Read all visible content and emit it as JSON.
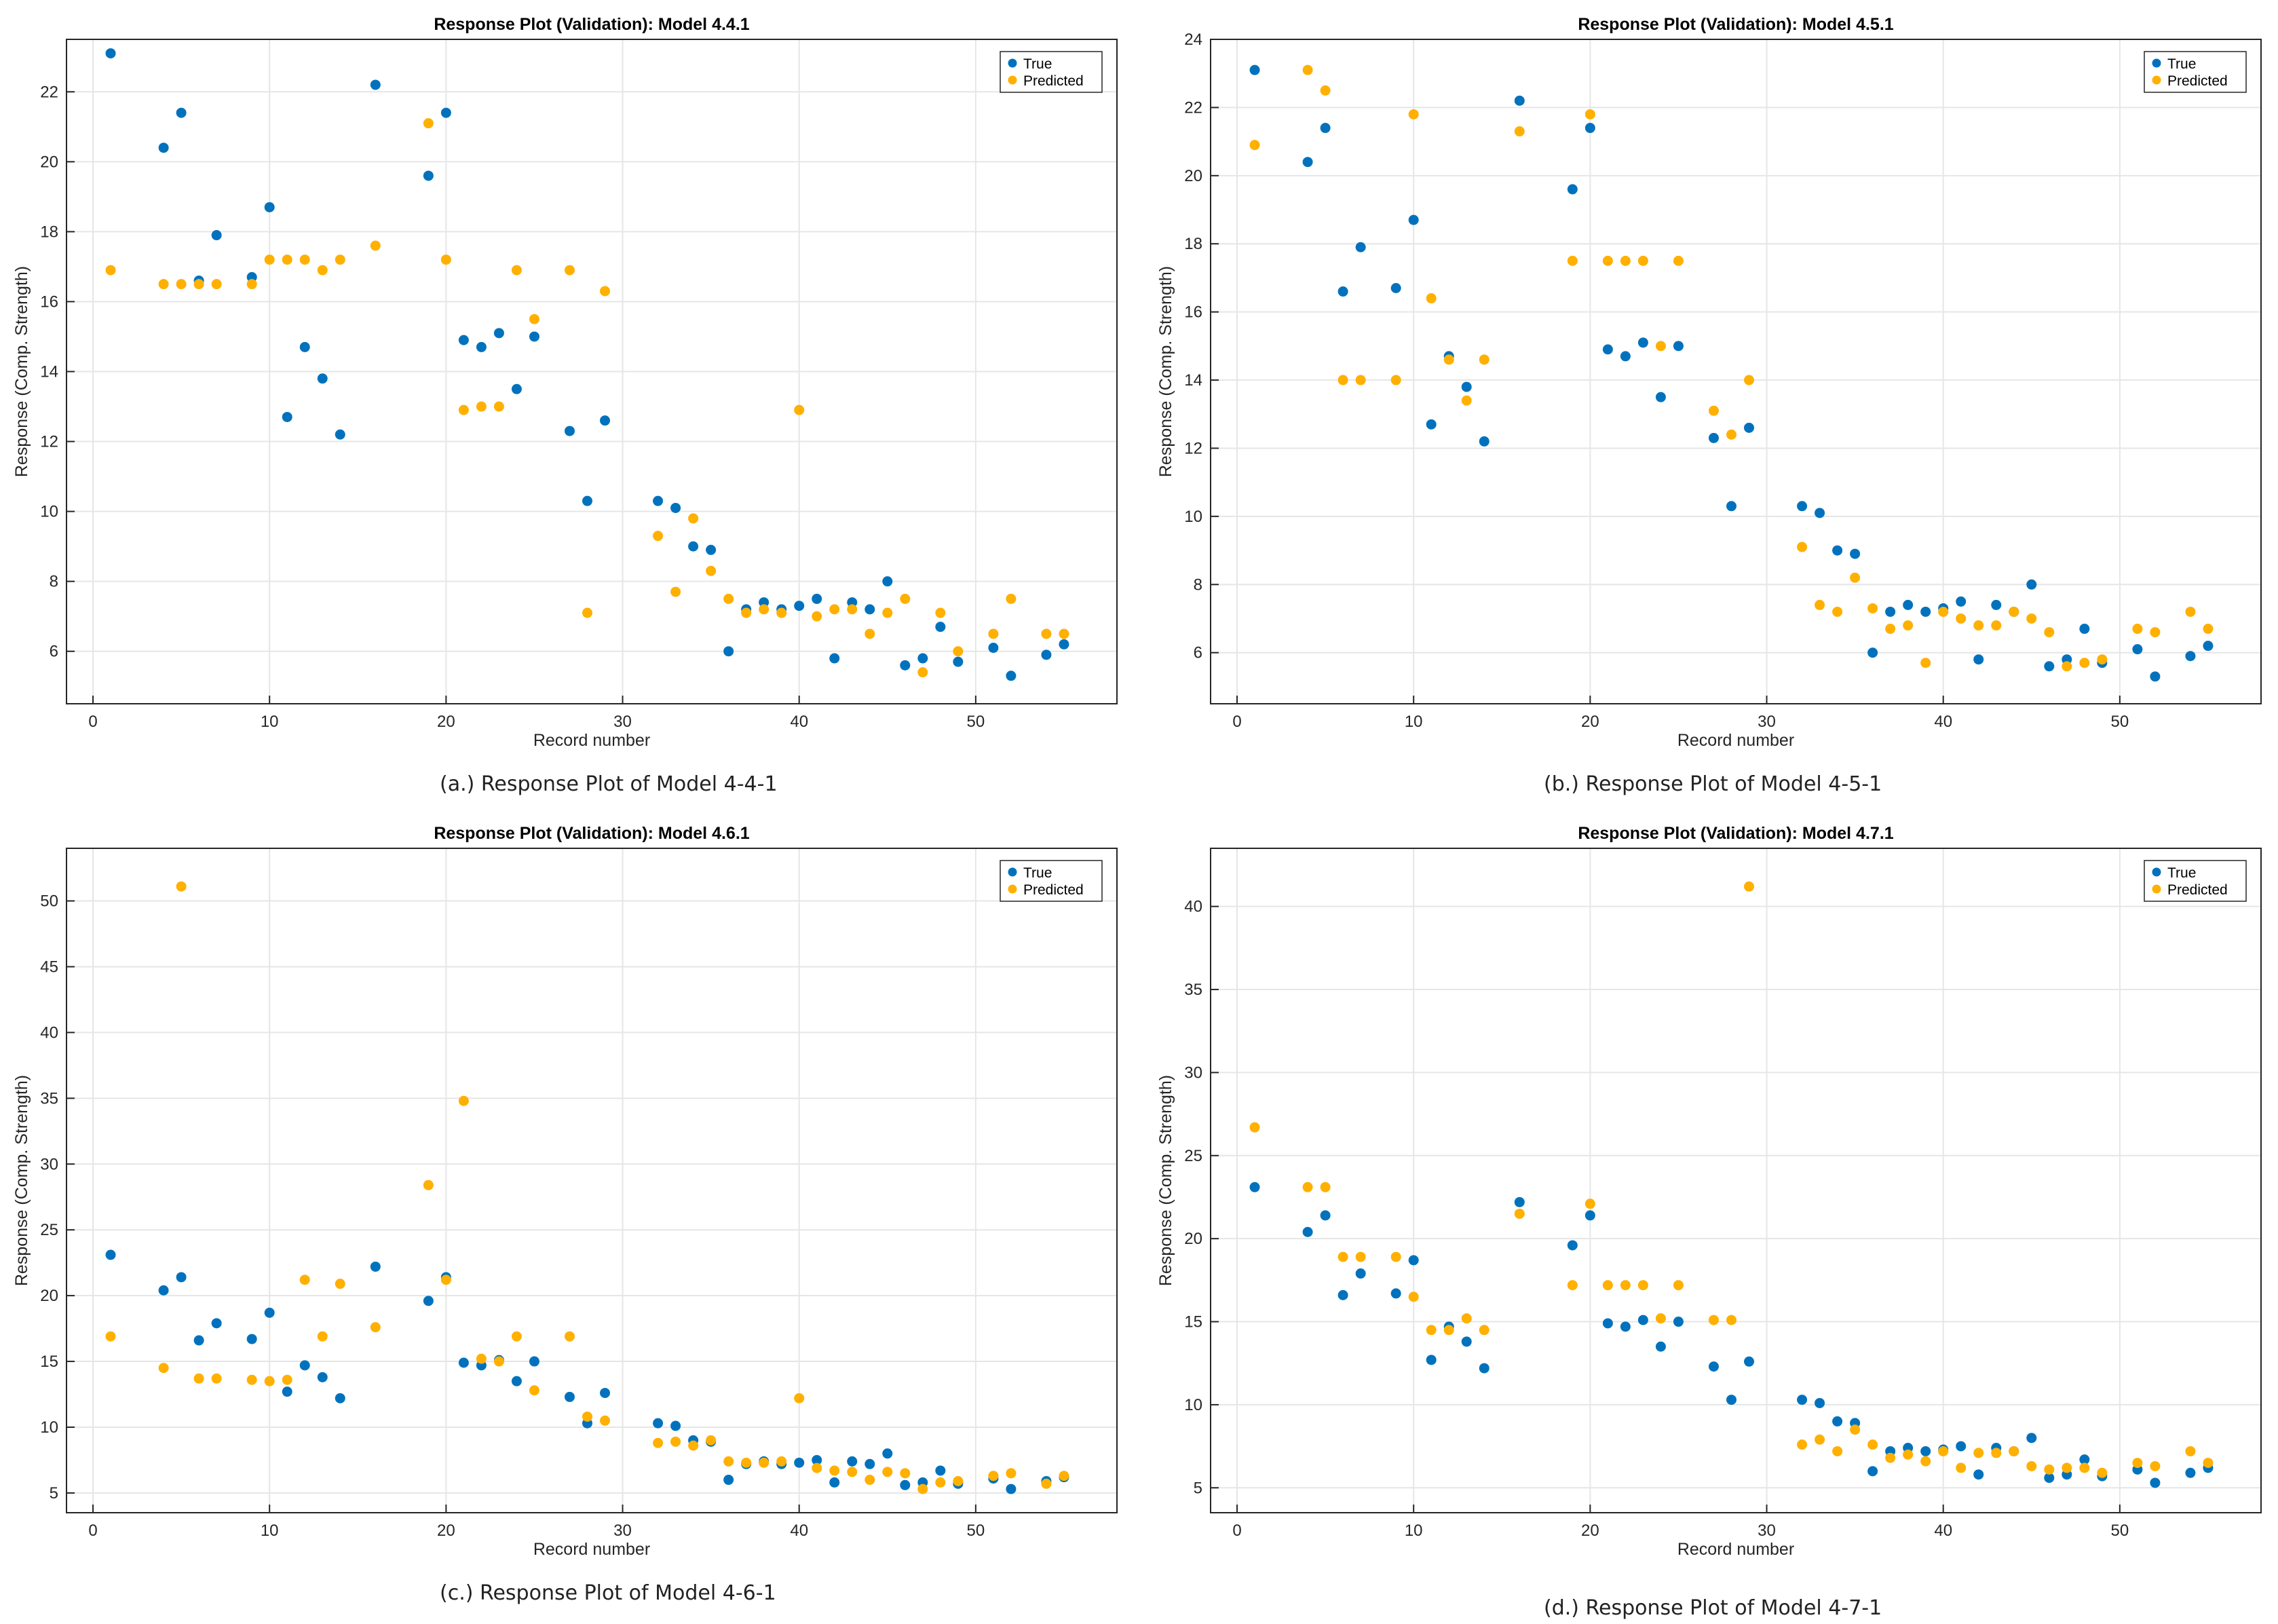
{
  "colors": {
    "true": "#0072BD",
    "predicted": "#FFB000",
    "grid": "#e6e6e6",
    "axis": "#262626"
  },
  "captions": {
    "a": "(a.) Response Plot of Model 4-4-1",
    "b": "(b.) Response Plot of Model 4-5-1",
    "c": "(c.) Response Plot of Model 4-6-1",
    "d": "(d.) Response Plot of Model 4-7-1"
  },
  "chart_data": [
    {
      "type": "scatter",
      "title": "Response Plot (Validation): Model 4.4.1",
      "xlabel": "Record number",
      "ylabel": "Response (Comp. Strength)",
      "xlim": [
        -1.5,
        58
      ],
      "ylim": [
        4.5,
        23.5
      ],
      "xticks": [
        0,
        10,
        20,
        30,
        40,
        50
      ],
      "yticks": [
        6,
        8,
        10,
        12,
        14,
        16,
        18,
        20,
        22
      ],
      "grid": true,
      "legend": {
        "position": "top-right",
        "entries": [
          "True",
          "Predicted"
        ]
      },
      "x": [
        1,
        4,
        5,
        6,
        7,
        9,
        10,
        11,
        12,
        13,
        14,
        16,
        19,
        20,
        21,
        22,
        23,
        24,
        25,
        27,
        28,
        29,
        32,
        33,
        34,
        35,
        36,
        37,
        38,
        39,
        40,
        41,
        42,
        43,
        44,
        45,
        46,
        47,
        48,
        49,
        51,
        52,
        54,
        55
      ],
      "series": [
        {
          "name": "True",
          "values": [
            23.1,
            20.4,
            21.4,
            16.6,
            17.9,
            16.7,
            18.7,
            12.7,
            14.7,
            13.8,
            12.2,
            22.2,
            19.6,
            21.4,
            14.9,
            14.7,
            15.1,
            13.5,
            15.0,
            12.3,
            10.3,
            12.6,
            10.3,
            10.1,
            9.0,
            8.9,
            6.0,
            7.2,
            7.4,
            7.2,
            7.3,
            7.5,
            5.8,
            7.4,
            7.2,
            8.0,
            5.6,
            5.8,
            6.7,
            5.7,
            6.1,
            5.3,
            5.9,
            6.2
          ]
        },
        {
          "name": "Predicted",
          "values": [
            16.9,
            16.5,
            16.5,
            16.5,
            16.5,
            16.5,
            17.2,
            17.2,
            17.2,
            16.9,
            17.2,
            17.6,
            21.1,
            17.2,
            12.9,
            13.0,
            13.0,
            16.9,
            15.5,
            16.9,
            7.1,
            16.3,
            9.3,
            7.7,
            9.8,
            8.3,
            7.5,
            7.1,
            7.2,
            7.1,
            12.9,
            7.0,
            7.2,
            7.2,
            6.5,
            7.1,
            7.5,
            5.4,
            7.1,
            6.0,
            6.5,
            7.5,
            6.5,
            6.5
          ]
        }
      ]
    },
    {
      "type": "scatter",
      "title": "Response Plot (Validation): Model 4.5.1",
      "xlabel": "Record number",
      "ylabel": "Response (Comp. Strength)",
      "xlim": [
        -1.5,
        58
      ],
      "ylim": [
        4.5,
        24
      ],
      "xticks": [
        0,
        10,
        20,
        30,
        40,
        50
      ],
      "yticks": [
        6,
        8,
        10,
        12,
        14,
        16,
        18,
        20,
        22,
        24
      ],
      "grid": true,
      "legend": {
        "position": "top-right",
        "entries": [
          "True",
          "Predicted"
        ]
      },
      "x": [
        1,
        4,
        5,
        6,
        7,
        9,
        10,
        11,
        12,
        13,
        14,
        16,
        19,
        20,
        21,
        22,
        23,
        24,
        25,
        27,
        28,
        29,
        32,
        33,
        34,
        35,
        36,
        37,
        38,
        39,
        40,
        41,
        42,
        43,
        44,
        45,
        46,
        47,
        48,
        49,
        51,
        52,
        54,
        55
      ],
      "series": [
        {
          "name": "True",
          "values": [
            23.1,
            20.4,
            21.4,
            16.6,
            17.9,
            16.7,
            18.7,
            12.7,
            14.7,
            13.8,
            12.2,
            22.2,
            19.6,
            21.4,
            14.9,
            14.7,
            15.1,
            13.5,
            15.0,
            12.3,
            10.3,
            12.6,
            10.3,
            10.1,
            9.0,
            8.9,
            6.0,
            7.2,
            7.4,
            7.2,
            7.3,
            7.5,
            5.8,
            7.4,
            7.2,
            8.0,
            5.6,
            5.8,
            6.7,
            5.7,
            6.1,
            5.3,
            5.9,
            6.2
          ]
        },
        {
          "name": "Predicted",
          "values": [
            20.9,
            23.1,
            22.5,
            14.0,
            14.0,
            14.0,
            21.8,
            16.4,
            14.6,
            13.4,
            14.6,
            21.3,
            17.5,
            21.8,
            17.5,
            17.5,
            17.5,
            15.0,
            17.5,
            13.1,
            12.4,
            14.0,
            9.1,
            7.4,
            7.2,
            8.2,
            7.3,
            6.7,
            6.8,
            5.7,
            7.2,
            7.0,
            6.8,
            6.8,
            7.2,
            7.0,
            6.6,
            5.6,
            5.7,
            5.8,
            6.7,
            6.6,
            7.2,
            6.7
          ]
        }
      ]
    },
    {
      "type": "scatter",
      "title": "Response Plot (Validation): Model 4.6.1",
      "xlabel": "Record number",
      "ylabel": "Response (Comp. Strength)",
      "xlim": [
        -1.5,
        58
      ],
      "ylim": [
        3.5,
        54
      ],
      "xticks": [
        0,
        10,
        20,
        30,
        40,
        50
      ],
      "yticks": [
        5,
        10,
        15,
        20,
        25,
        30,
        35,
        40,
        45,
        50
      ],
      "grid": true,
      "legend": {
        "position": "top-right",
        "entries": [
          "True",
          "Predicted"
        ]
      },
      "x": [
        1,
        4,
        5,
        6,
        7,
        9,
        10,
        11,
        12,
        13,
        14,
        16,
        19,
        20,
        21,
        22,
        23,
        24,
        25,
        27,
        28,
        29,
        32,
        33,
        34,
        35,
        36,
        37,
        38,
        39,
        40,
        41,
        42,
        43,
        44,
        45,
        46,
        47,
        48,
        49,
        51,
        52,
        54,
        55
      ],
      "series": [
        {
          "name": "True",
          "values": [
            23.1,
            20.4,
            21.4,
            16.6,
            17.9,
            16.7,
            18.7,
            12.7,
            14.7,
            13.8,
            12.2,
            22.2,
            19.6,
            21.4,
            14.9,
            14.7,
            15.1,
            13.5,
            15.0,
            12.3,
            10.3,
            12.6,
            10.3,
            10.1,
            9.0,
            8.9,
            6.0,
            7.2,
            7.4,
            7.2,
            7.3,
            7.5,
            5.8,
            7.4,
            7.2,
            8.0,
            5.6,
            5.8,
            6.7,
            5.7,
            6.1,
            5.3,
            5.9,
            6.2
          ]
        },
        {
          "name": "Predicted",
          "values": [
            16.9,
            14.5,
            51.1,
            13.7,
            13.7,
            13.6,
            13.5,
            13.6,
            21.2,
            16.9,
            20.9,
            17.6,
            28.4,
            21.2,
            34.8,
            15.2,
            15.0,
            16.9,
            12.8,
            16.9,
            10.8,
            10.5,
            8.8,
            8.9,
            8.6,
            9.0,
            7.4,
            7.3,
            7.3,
            7.4,
            12.2,
            6.9,
            6.7,
            6.6,
            6.0,
            6.6,
            6.5,
            5.3,
            5.8,
            5.9,
            6.3,
            6.5,
            5.7,
            6.3
          ]
        }
      ]
    },
    {
      "type": "scatter",
      "title": "Response Plot (Validation): Model 4.7.1",
      "xlabel": "Record number",
      "ylabel": "Response (Comp. Strength)",
      "xlim": [
        -1.5,
        58
      ],
      "ylim": [
        3.5,
        43.5
      ],
      "xticks": [
        0,
        10,
        20,
        30,
        40,
        50
      ],
      "yticks": [
        5,
        10,
        15,
        20,
        25,
        30,
        35,
        40
      ],
      "grid": true,
      "legend": {
        "position": "top-right",
        "entries": [
          "True",
          "Predicted"
        ]
      },
      "x": [
        1,
        4,
        5,
        6,
        7,
        9,
        10,
        11,
        12,
        13,
        14,
        16,
        19,
        20,
        21,
        22,
        23,
        24,
        25,
        27,
        28,
        29,
        32,
        33,
        34,
        35,
        36,
        37,
        38,
        39,
        40,
        41,
        42,
        43,
        44,
        45,
        46,
        47,
        48,
        49,
        51,
        52,
        54,
        55
      ],
      "series": [
        {
          "name": "True",
          "values": [
            23.1,
            20.4,
            21.4,
            16.6,
            17.9,
            16.7,
            18.7,
            12.7,
            14.7,
            13.8,
            12.2,
            22.2,
            19.6,
            21.4,
            14.9,
            14.7,
            15.1,
            13.5,
            15.0,
            12.3,
            10.3,
            12.6,
            10.3,
            10.1,
            9.0,
            8.9,
            6.0,
            7.2,
            7.4,
            7.2,
            7.3,
            7.5,
            5.8,
            7.4,
            7.2,
            8.0,
            5.6,
            5.8,
            6.7,
            5.7,
            6.1,
            5.3,
            5.9,
            6.2
          ]
        },
        {
          "name": "Predicted",
          "values": [
            26.7,
            23.1,
            23.1,
            18.9,
            18.9,
            18.9,
            16.5,
            14.5,
            14.5,
            15.2,
            14.5,
            21.5,
            17.2,
            22.1,
            17.2,
            17.2,
            17.2,
            15.2,
            17.2,
            15.1,
            15.1,
            41.2,
            7.6,
            7.9,
            7.2,
            8.5,
            7.6,
            6.8,
            7.0,
            6.6,
            7.2,
            6.2,
            7.1,
            7.1,
            7.2,
            6.3,
            6.1,
            6.2,
            6.2,
            5.9,
            6.5,
            6.3,
            7.2,
            6.5
          ]
        }
      ]
    }
  ]
}
